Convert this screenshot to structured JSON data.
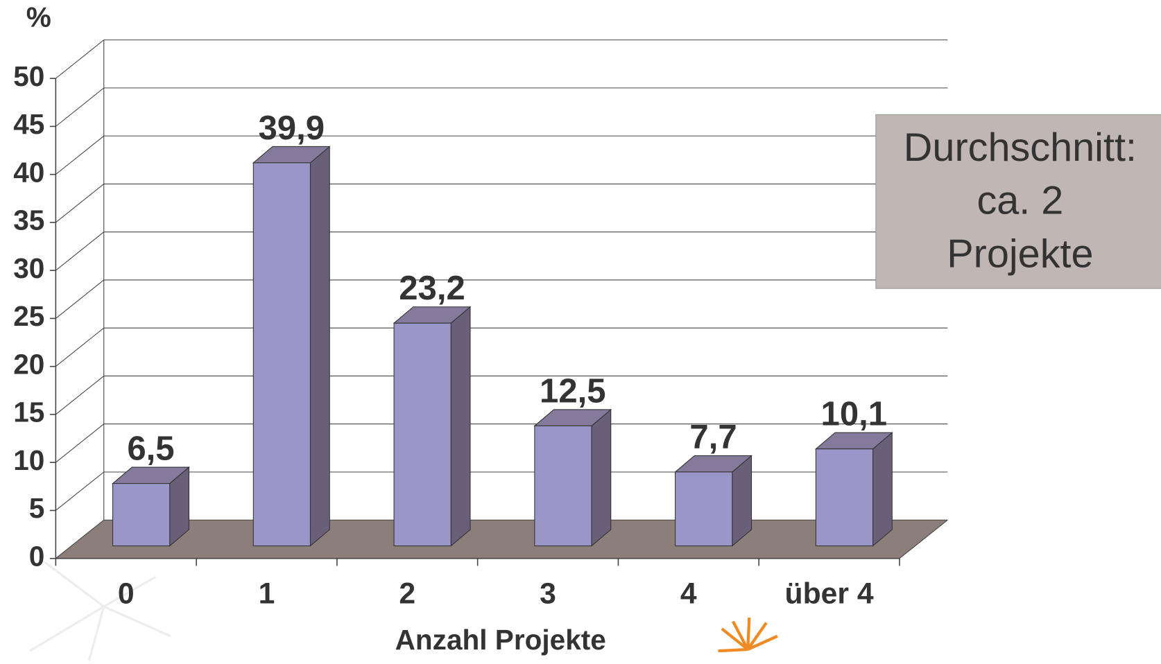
{
  "chart_data": {
    "type": "bar3d",
    "ylabel": "%",
    "xlabel": "Anzahl Projekte",
    "categories": [
      "0",
      "1",
      "2",
      "3",
      "4",
      "über 4"
    ],
    "values": [
      6.5,
      39.9,
      23.2,
      12.5,
      7.7,
      10.1
    ],
    "value_labels": [
      "6,5",
      "39,9",
      "23,2",
      "12,5",
      "7,7",
      "10,1"
    ],
    "color": "#9b96c8",
    "ylim": [
      0,
      50
    ],
    "yticks": [
      0,
      5,
      10,
      15,
      20,
      25,
      30,
      35,
      40,
      45,
      50
    ],
    "grid": true,
    "annotation": [
      "Durchschnitt:",
      "ca. 2",
      "Projekte"
    ]
  }
}
